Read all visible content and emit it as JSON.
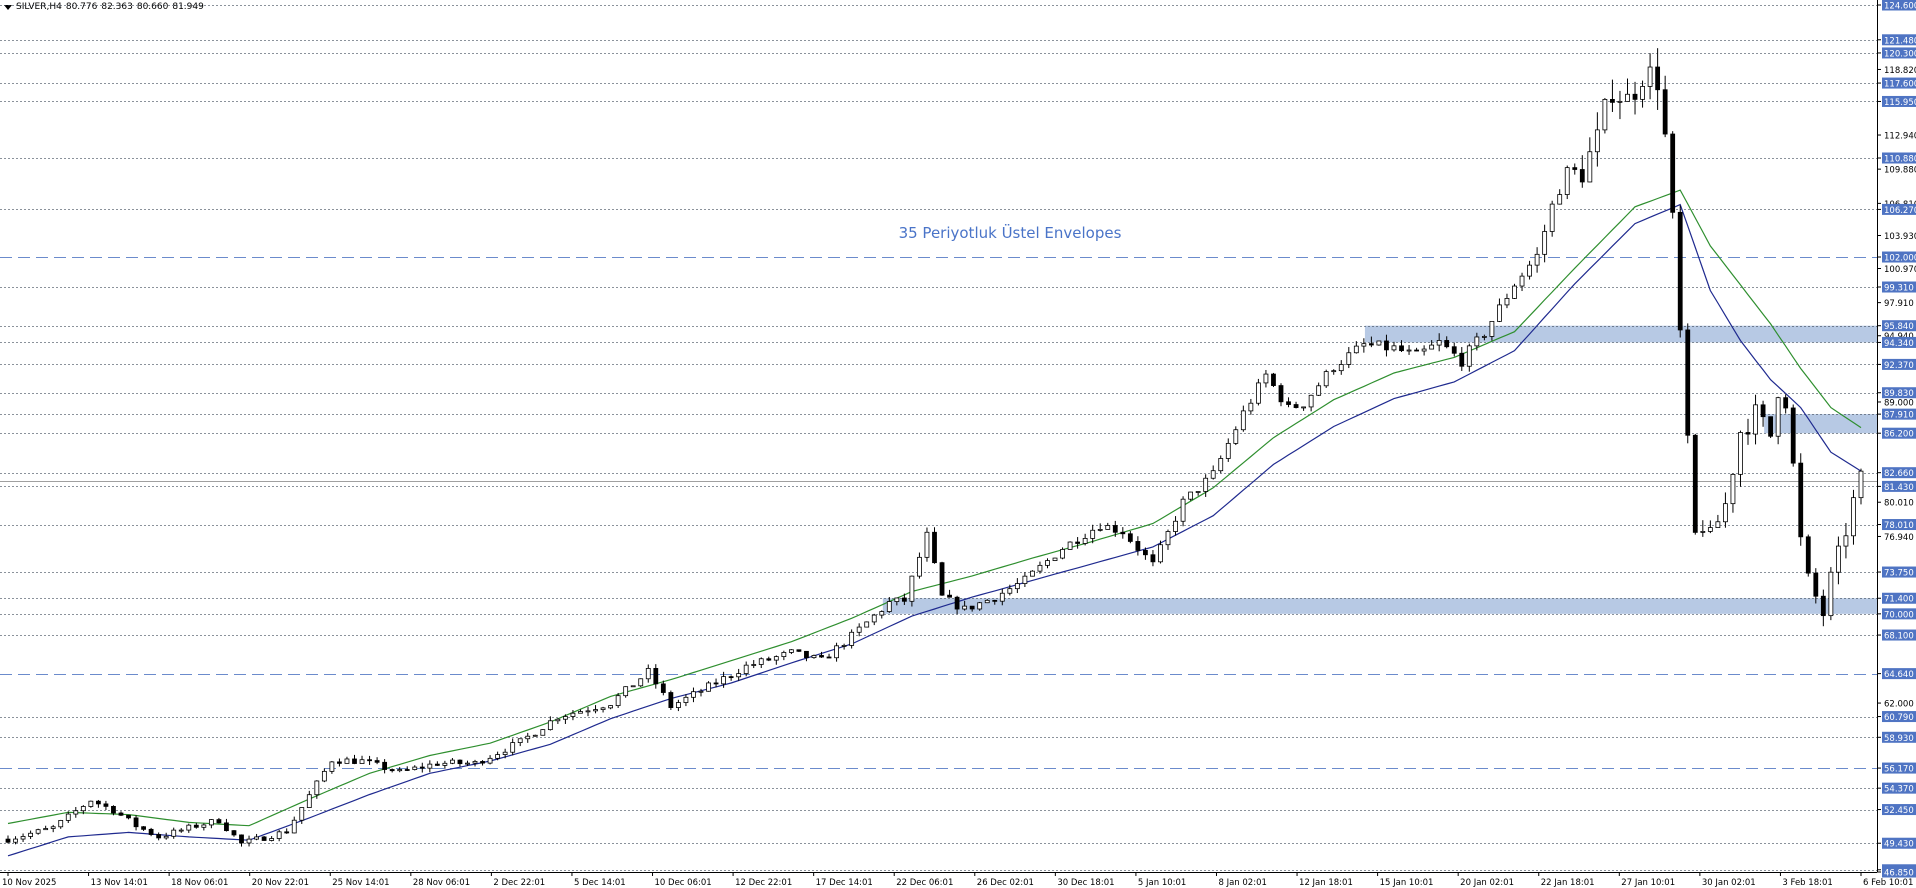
{
  "header": {
    "symbol": "SILVER,H4",
    "open": "80.776",
    "high": "82.363",
    "low": "80.660",
    "close": "81.949"
  },
  "chart_data": {
    "type": "candlestick",
    "symbol": "SILVER",
    "timeframe": "H4",
    "annotation": "35 Periyotluk Üstel Envelopes",
    "ylim": [
      46.85,
      124.6
    ],
    "price_ticks": [
      "124.600",
      "121.480",
      "120.300",
      "118.820",
      "117.600",
      "115.950",
      "112.940",
      "110.880",
      "109.880",
      "106.810",
      "106.270",
      "103.930",
      "102.000",
      "100.970",
      "99.310",
      "97.910",
      "95.840",
      "94.940",
      "94.340",
      "92.370",
      "89.830",
      "89.000",
      "87.910",
      "86.200",
      "82.660",
      "81.430",
      "80.010",
      "78.010",
      "76.940",
      "73.750",
      "71.400",
      "70.000",
      "68.100",
      "64.640",
      "62.000",
      "60.790",
      "58.930",
      "56.170",
      "54.370",
      "52.450",
      "49.430",
      "47.050",
      "46.850"
    ],
    "labeled_levels": [
      "124.600",
      "121.480",
      "120.300",
      "117.600",
      "115.950",
      "110.880",
      "106.270",
      "102.000",
      "99.310",
      "95.840",
      "94.340",
      "92.370",
      "89.830",
      "87.910",
      "86.200",
      "82.660",
      "81.430",
      "78.010",
      "73.750",
      "71.400",
      "70.000",
      "68.100",
      "64.640",
      "60.790",
      "58.930",
      "56.170",
      "54.370",
      "52.450",
      "49.430",
      "47.050",
      "46.850"
    ],
    "dashed_levels": [
      "102.000",
      "64.640",
      "56.170"
    ],
    "current_price": "81.949",
    "zones": [
      {
        "from": 94.34,
        "to": 95.84,
        "start_label": "15 Jan 10:01"
      },
      {
        "from": 86.2,
        "to": 87.91,
        "start_label": "3 Feb 18:01"
      },
      {
        "from": 70.0,
        "to": 71.4,
        "start_label": "22 Dec 06:01"
      }
    ],
    "x_labels": [
      "10 Nov 2025",
      "13 Nov 14:01",
      "18 Nov 06:01",
      "20 Nov 22:01",
      "25 Nov 14:01",
      "28 Nov 06:01",
      "2 Dec 22:01",
      "5 Dec 14:01",
      "10 Dec 06:01",
      "12 Dec 22:01",
      "17 Dec 14:01",
      "22 Dec 06:01",
      "26 Dec 02:01",
      "30 Dec 18:01",
      "5 Jan 10:01",
      "8 Jan 02:01",
      "12 Jan 18:01",
      "15 Jan 10:01",
      "20 Jan 02:01",
      "22 Jan 18:01",
      "27 Jan 10:01",
      "30 Jan 02:01",
      "3 Feb 18:01",
      "6 Feb 10:01"
    ],
    "close_path": [
      [
        0,
        49.8
      ],
      [
        6,
        50.8
      ],
      [
        11,
        53.3
      ],
      [
        14,
        52.4
      ],
      [
        17,
        51.0
      ],
      [
        20,
        50.0
      ],
      [
        25,
        51.0
      ],
      [
        28,
        51.5
      ],
      [
        31,
        49.4
      ],
      [
        37,
        50.5
      ],
      [
        43,
        56.9
      ],
      [
        47,
        56.8
      ],
      [
        52,
        55.8
      ],
      [
        57,
        56.6
      ],
      [
        62,
        56.6
      ],
      [
        68,
        58.5
      ],
      [
        73,
        60.8
      ],
      [
        80,
        62.0
      ],
      [
        85,
        64.8
      ],
      [
        88,
        61.7
      ],
      [
        92,
        63.1
      ],
      [
        98,
        65.3
      ],
      [
        104,
        66.5
      ],
      [
        108,
        65.8
      ],
      [
        112,
        68.0
      ],
      [
        117,
        71.0
      ],
      [
        119,
        71.2
      ],
      [
        122,
        77.0
      ],
      [
        124,
        71.5
      ],
      [
        127,
        70.4
      ],
      [
        131,
        71.5
      ],
      [
        135,
        73.0
      ],
      [
        140,
        75.9
      ],
      [
        145,
        78.0
      ],
      [
        148,
        77.4
      ],
      [
        152,
        74.4
      ],
      [
        156,
        80.0
      ],
      [
        160,
        82.5
      ],
      [
        164,
        88.0
      ],
      [
        167,
        91.4
      ],
      [
        170,
        88.4
      ],
      [
        172,
        88.9
      ],
      [
        176,
        92.2
      ],
      [
        180,
        94.1
      ],
      [
        184,
        93.8
      ],
      [
        187,
        93.1
      ],
      [
        190,
        94.3
      ],
      [
        193,
        92.7
      ],
      [
        196,
        95.2
      ],
      [
        200,
        99.6
      ],
      [
        203,
        102.1
      ],
      [
        206,
        108.8
      ],
      [
        209,
        109.7
      ],
      [
        211,
        112.5
      ],
      [
        213,
        117.2
      ],
      [
        215,
        116.0
      ],
      [
        217,
        118.5
      ],
      [
        219,
        118.0
      ],
      [
        220,
        112.7
      ],
      [
        221,
        105.0
      ],
      [
        222,
        95.0
      ],
      [
        223,
        85.0
      ],
      [
        224,
        77.0
      ],
      [
        225,
        78.0
      ],
      [
        226,
        76.8
      ],
      [
        228,
        79.8
      ],
      [
        230,
        86.4
      ],
      [
        232,
        87.9
      ],
      [
        234,
        86.0
      ],
      [
        235,
        90.3
      ],
      [
        236,
        89.3
      ],
      [
        237,
        83.2
      ],
      [
        238,
        76.5
      ],
      [
        239,
        73.0
      ],
      [
        240,
        71.5
      ],
      [
        241,
        70.0
      ],
      [
        242,
        73.1
      ],
      [
        243,
        75.2
      ],
      [
        244,
        77.5
      ],
      [
        245,
        80.0
      ],
      [
        246,
        82.0
      ]
    ],
    "envelope_upper": [
      [
        0,
        51.2
      ],
      [
        8,
        52.2
      ],
      [
        16,
        52.0
      ],
      [
        24,
        51.3
      ],
      [
        32,
        51.0
      ],
      [
        40,
        53.4
      ],
      [
        48,
        55.7
      ],
      [
        56,
        57.3
      ],
      [
        64,
        58.4
      ],
      [
        72,
        60.3
      ],
      [
        80,
        62.6
      ],
      [
        88,
        64.1
      ],
      [
        96,
        65.8
      ],
      [
        104,
        67.5
      ],
      [
        112,
        69.6
      ],
      [
        120,
        72.0
      ],
      [
        128,
        73.4
      ],
      [
        136,
        75.0
      ],
      [
        144,
        76.5
      ],
      [
        152,
        78.1
      ],
      [
        160,
        81.3
      ],
      [
        168,
        85.8
      ],
      [
        176,
        89.2
      ],
      [
        184,
        91.6
      ],
      [
        192,
        93.0
      ],
      [
        200,
        95.3
      ],
      [
        208,
        101.0
      ],
      [
        216,
        106.5
      ],
      [
        222,
        108.0
      ],
      [
        226,
        103.0
      ],
      [
        230,
        99.5
      ],
      [
        234,
        96.0
      ],
      [
        238,
        92.0
      ],
      [
        242,
        88.5
      ],
      [
        246,
        86.7
      ]
    ],
    "envelope_lower": [
      [
        0,
        48.3
      ],
      [
        8,
        50.0
      ],
      [
        16,
        50.4
      ],
      [
        24,
        50.0
      ],
      [
        32,
        49.7
      ],
      [
        40,
        51.7
      ],
      [
        48,
        53.8
      ],
      [
        56,
        55.7
      ],
      [
        64,
        56.8
      ],
      [
        72,
        58.3
      ],
      [
        80,
        60.6
      ],
      [
        88,
        62.4
      ],
      [
        96,
        63.8
      ],
      [
        104,
        65.6
      ],
      [
        112,
        67.3
      ],
      [
        120,
        69.8
      ],
      [
        128,
        71.5
      ],
      [
        136,
        73.0
      ],
      [
        144,
        74.5
      ],
      [
        152,
        76.0
      ],
      [
        160,
        78.8
      ],
      [
        168,
        83.4
      ],
      [
        176,
        86.8
      ],
      [
        184,
        89.3
      ],
      [
        192,
        90.8
      ],
      [
        200,
        93.6
      ],
      [
        208,
        99.6
      ],
      [
        216,
        105.0
      ],
      [
        222,
        106.7
      ],
      [
        226,
        99.0
      ],
      [
        230,
        94.5
      ],
      [
        234,
        91.0
      ],
      [
        238,
        88.5
      ],
      [
        242,
        84.5
      ],
      [
        246,
        82.8
      ]
    ],
    "bar_count": 247,
    "colors": {
      "background": "#ffffff",
      "grid": "#2e3a4a",
      "dashed_level": "#5b7fc7",
      "zone": "#b7c9e4",
      "label_bg": "#4f74c3",
      "label_text": "#ffffff",
      "candle_up": "#ffffff",
      "candle_down": "#000000",
      "envelope_upper": "#2f8f2f",
      "envelope_lower": "#1f2a8f",
      "annotation": "#4a74c8"
    }
  }
}
